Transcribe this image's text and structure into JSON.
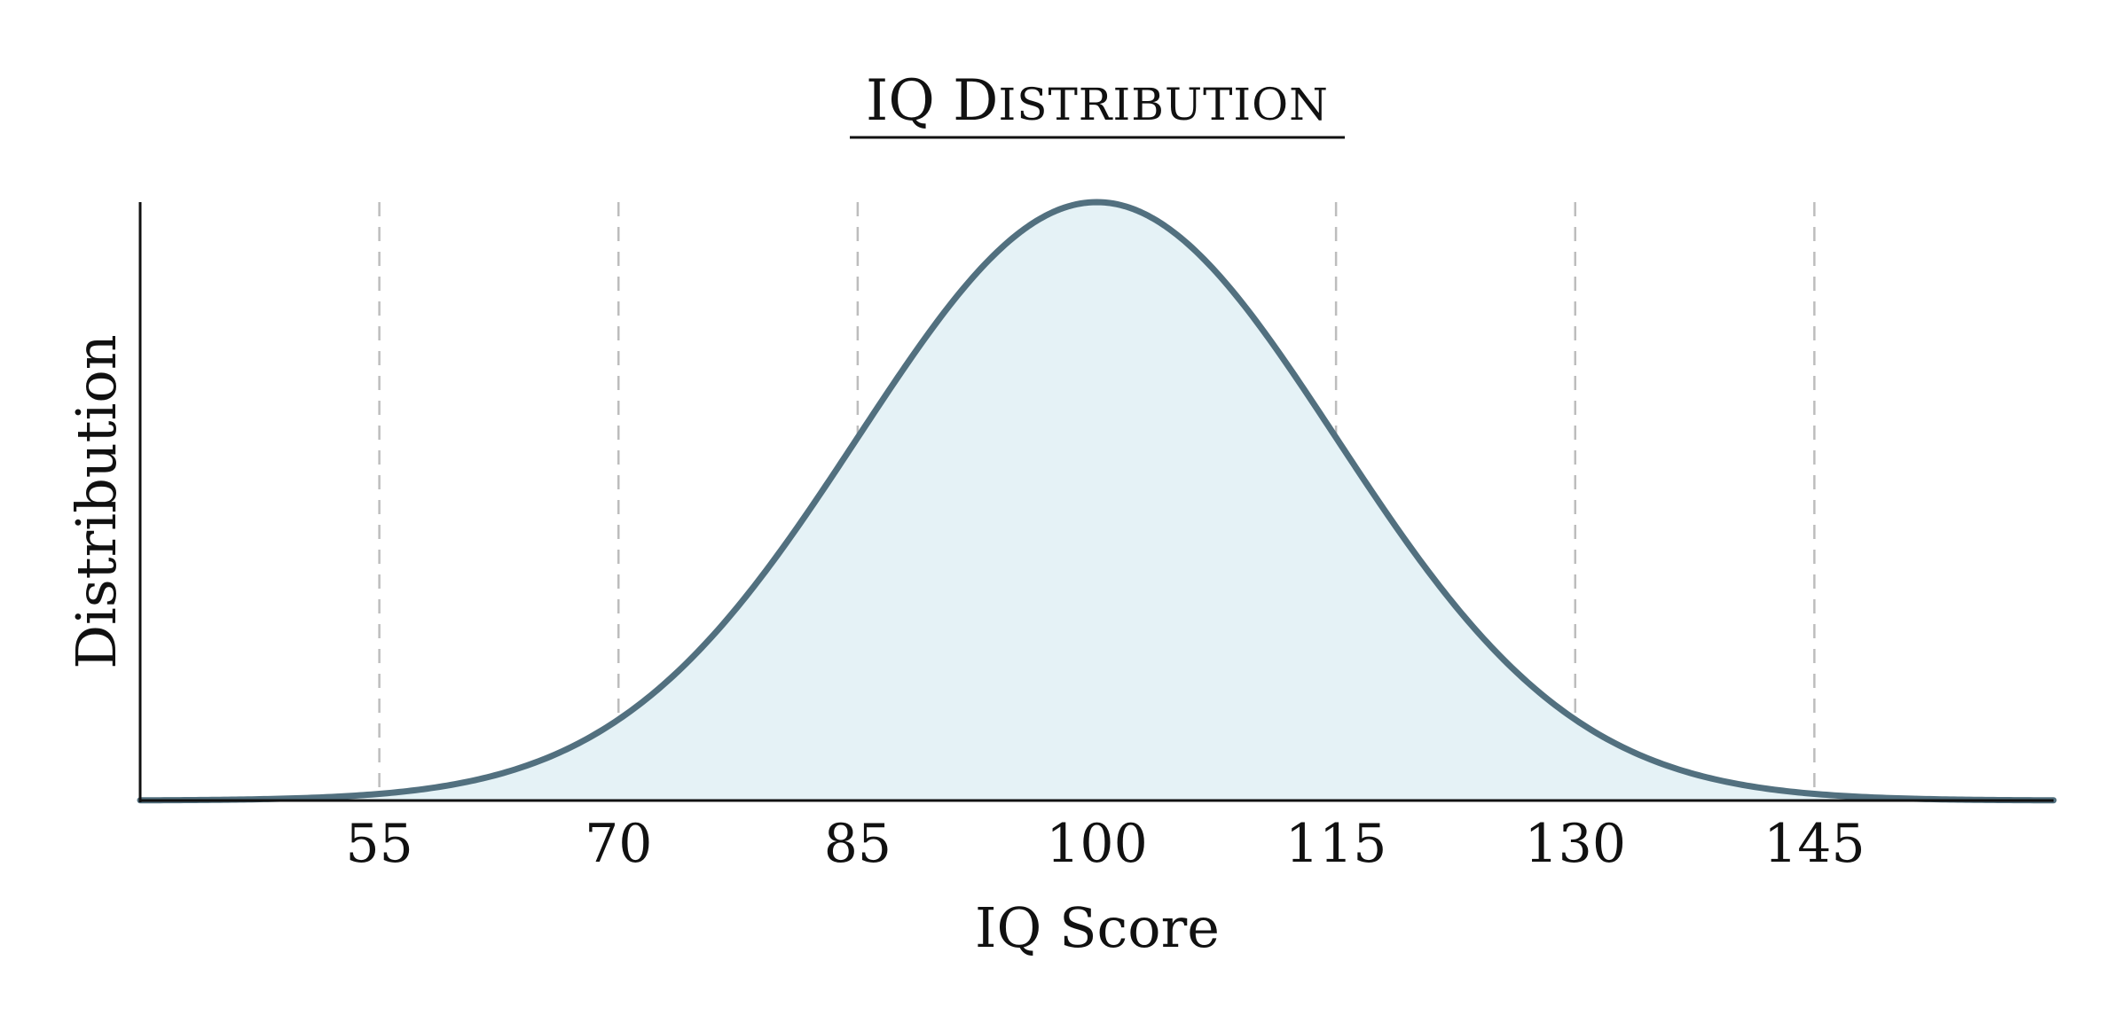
{
  "chart_data": {
    "type": "area",
    "title": "IQ Distribution",
    "xlabel": "IQ Score",
    "ylabel": "Distribution",
    "xlim": [
      40,
      160
    ],
    "ylim": [
      0,
      1
    ],
    "x_ticks": [
      55,
      70,
      85,
      100,
      115,
      130,
      145
    ],
    "x_tick_labels": [
      "55",
      "70",
      "85",
      "100",
      "115",
      "130",
      "145"
    ],
    "grid": {
      "vertical": true,
      "style": "dashed"
    },
    "distribution": {
      "kind": "normal",
      "mean": 100,
      "sd": 15
    },
    "series": [
      {
        "color": "#52707f",
        "fill": "#e5f2f6"
      }
    ],
    "colors": {
      "line": "#52707f",
      "fill": "#e5f2f6",
      "grid": "#bdbdbd",
      "axis": "#111111"
    }
  }
}
